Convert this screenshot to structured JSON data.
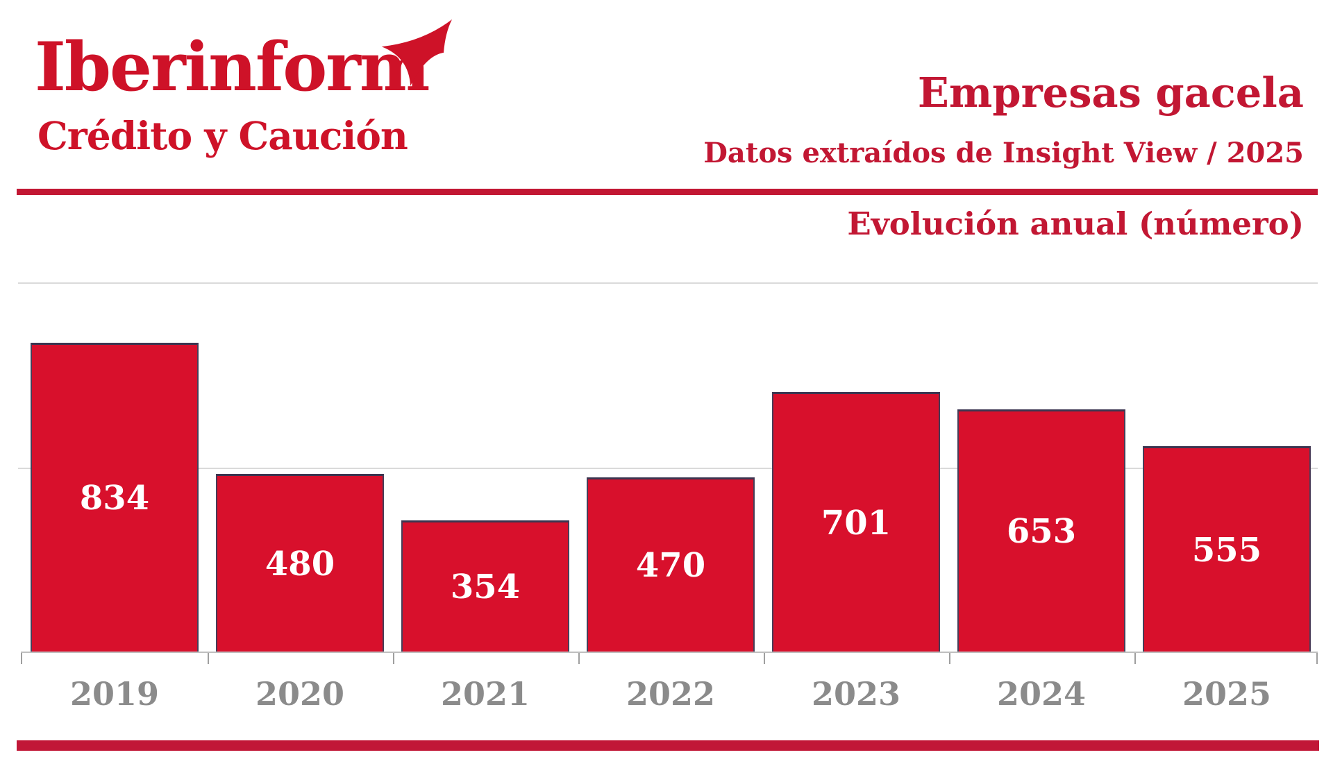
{
  "brand": {
    "logo_text": "Iberinform",
    "tagline": "Crédito y Caución"
  },
  "header": {
    "title": "Empresas gacela",
    "subtitle": "Datos extraídos de Insight View / 2025",
    "section_label": "Evolución anual (número)"
  },
  "chart_data": {
    "type": "bar",
    "title": "Empresas gacela — Evolución anual (número)",
    "categories": [
      "2019",
      "2020",
      "2021",
      "2022",
      "2023",
      "2024",
      "2025"
    ],
    "values": [
      834,
      480,
      354,
      470,
      701,
      653,
      555
    ],
    "xlabel": "",
    "ylabel": "",
    "ylim": [
      0,
      1000
    ],
    "gridline_values": [
      500,
      1000
    ],
    "grid": true,
    "legend": false,
    "bar_labels_visible": true
  },
  "colors": {
    "brand_red": "#ce1228",
    "title_red": "#c21733",
    "bar_fill": "#d8102c",
    "bar_edge": "#3c3550",
    "bar_label": "#ffffff",
    "year_label_gray": "#8b8b8b",
    "gridline_gray": "#dadada",
    "axis_gray": "#bfbfbf",
    "footer_band_red": "#c11737",
    "background": "#ffffff"
  }
}
